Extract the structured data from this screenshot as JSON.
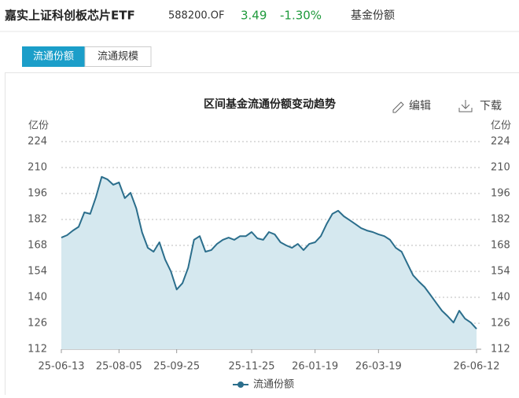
{
  "header": {
    "title": "嘉实上证科创板芯片ETF",
    "code": "588200.OF",
    "price": "3.49",
    "change": "-1.30%",
    "label": "基金份额"
  },
  "tabs": [
    "流通份额",
    "流通规模"
  ],
  "actions": [
    "编辑",
    "下载"
  ],
  "chart_data": {
    "type": "line",
    "title": "区间基金流通份额变动趋势",
    "y_unit": "亿份",
    "categories": [
      "25-06-13",
      null,
      null,
      null,
      null,
      null,
      null,
      null,
      null,
      null,
      "25-08-05",
      null,
      null,
      null,
      null,
      null,
      null,
      null,
      null,
      null,
      "25-09-25",
      null,
      null,
      null,
      null,
      null,
      null,
      null,
      null,
      null,
      null,
      null,
      null,
      "25-11-25",
      null,
      null,
      null,
      null,
      null,
      null,
      null,
      null,
      null,
      null,
      "26-01-19",
      null,
      null,
      null,
      null,
      null,
      null,
      null,
      null,
      null,
      null,
      "26-03-19",
      null,
      null,
      null,
      null,
      null,
      null,
      null,
      null,
      null,
      null,
      null,
      null,
      null,
      null,
      null,
      null,
      "26-06-12"
    ],
    "series": [
      {
        "name": "流通份额",
        "color": "#2b6e8c",
        "fill": "#d5e8ef",
        "values": [
          172.2,
          173.5,
          176,
          178,
          185.8,
          185,
          194,
          205,
          203.6,
          200.7,
          202,
          193.5,
          196.4,
          188,
          175,
          166.7,
          164.6,
          169.7,
          160.4,
          154,
          144.2,
          147.6,
          156,
          171,
          173,
          164.6,
          165.5,
          168.8,
          171,
          172.2,
          171,
          173,
          173,
          175.2,
          171.8,
          171,
          175.2,
          174,
          169.7,
          168,
          166.7,
          168.8,
          165.5,
          168.8,
          169.7,
          173,
          179.5,
          185,
          186.7,
          183.7,
          181.6,
          179.5,
          177.3,
          176,
          175.2,
          174,
          173,
          171,
          166.7,
          164.6,
          158.2,
          151.9,
          148.5,
          145.5,
          141.3,
          137,
          132.8,
          129.8,
          126.4,
          132.8,
          128.5,
          126.4,
          123
        ]
      }
    ],
    "ylim": [
      112,
      224
    ],
    "yticks": [
      112,
      126,
      140,
      154,
      168,
      182,
      196,
      210,
      224
    ],
    "grid": true
  }
}
